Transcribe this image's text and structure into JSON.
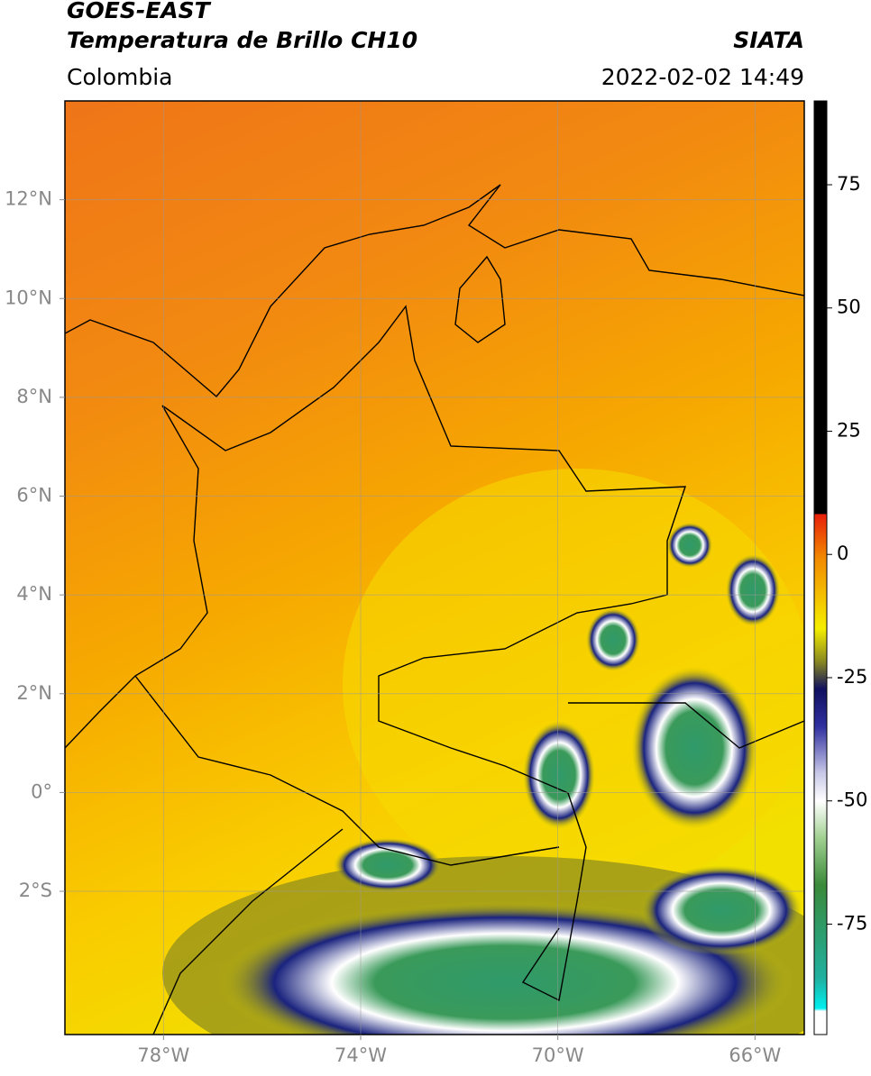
{
  "header": {
    "title": "GOES-EAST",
    "subtitle": "Temperatura de Brillo CH10",
    "source": "SIATA",
    "region": "Colombia",
    "datetime": "2022-02-02 14:49"
  },
  "map": {
    "xlim": [
      -80,
      -65
    ],
    "ylim": [
      -4.9,
      14
    ],
    "xticks": [
      {
        "value": -78,
        "label": "78°W"
      },
      {
        "value": -74,
        "label": "74°W"
      },
      {
        "value": -70,
        "label": "70°W"
      },
      {
        "value": -66,
        "label": "66°W"
      }
    ],
    "yticks": [
      {
        "value": -2,
        "label": "2°S"
      },
      {
        "value": 0,
        "label": "0°"
      },
      {
        "value": 2,
        "label": "2°N"
      },
      {
        "value": 4,
        "label": "4°N"
      },
      {
        "value": 6,
        "label": "6°N"
      },
      {
        "value": 8,
        "label": "8°N"
      },
      {
        "value": 10,
        "label": "10°N"
      },
      {
        "value": 12,
        "label": "12°N"
      }
    ],
    "grid": true
  },
  "colorbar": {
    "lim": [
      -97.4,
      92
    ],
    "ticks": [
      75,
      50,
      25,
      0,
      -25,
      -50,
      -75
    ]
  }
}
